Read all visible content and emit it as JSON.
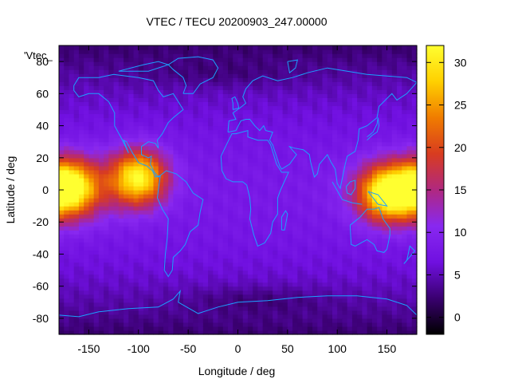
{
  "chart_data": {
    "type": "heatmap",
    "title": "VTEC / TECU 20200903_247.00000",
    "xlabel": "Longitude / deg",
    "ylabel": "Latitude / deg",
    "key_label": "'Vtec_",
    "xlim": [
      -180,
      180
    ],
    "ylim": [
      -90,
      90
    ],
    "xticks": [
      -150,
      -100,
      -50,
      0,
      50,
      100,
      150
    ],
    "yticks": [
      -80,
      -60,
      -40,
      -20,
      0,
      20,
      40,
      60,
      80
    ],
    "colorbar": {
      "range": [
        -2,
        32
      ],
      "ticks": [
        0,
        5,
        10,
        15,
        20,
        25,
        30
      ],
      "palette": [
        "#000000",
        "#3a0070",
        "#7010e0",
        "#8828f0",
        "#b02880",
        "#d83c20",
        "#f07c00",
        "#ffd000",
        "#ffff30"
      ]
    },
    "features": {
      "equatorial_band_peaks": [
        {
          "lon": -170,
          "lat": 2,
          "value": 30
        },
        {
          "lon": -100,
          "lat": 8,
          "value": 31
        },
        {
          "lon": 150,
          "lat": -2,
          "value": 30
        }
      ],
      "background_value": 8,
      "polar_min_value": 3
    },
    "coastline_color": "#1ca0ff"
  }
}
